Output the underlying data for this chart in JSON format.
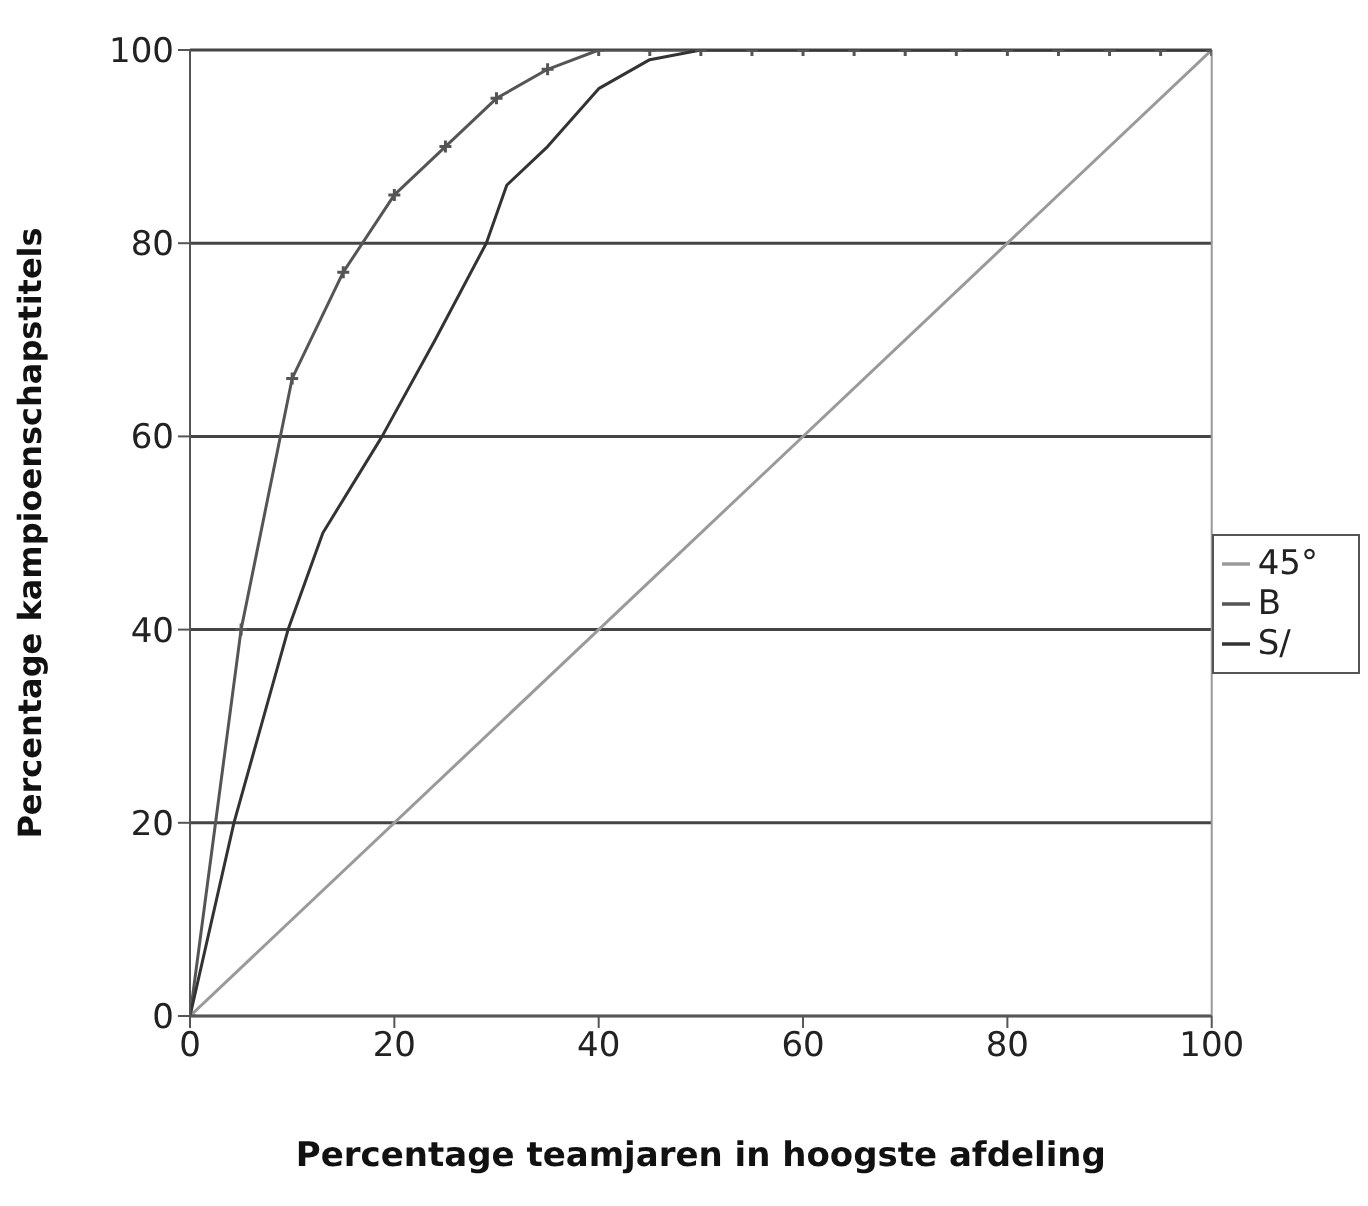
{
  "chart_data": {
    "type": "line",
    "xlabel": "Percentage teamjaren in hoogste afdeling",
    "ylabel": "Percentage kampioenschapstitels",
    "xlim": [
      0,
      100
    ],
    "xticks": [
      0,
      20,
      40,
      60,
      80,
      100
    ],
    "ylim": [
      0,
      100
    ],
    "yticks": [
      0,
      20,
      40,
      60,
      80,
      100
    ],
    "grid": "y",
    "legend": "right",
    "series": [
      {
        "name": "45°",
        "color": "#9a9a9a",
        "marker": "none",
        "x": [
          0,
          100
        ],
        "values": [
          0,
          100
        ]
      },
      {
        "name": "B",
        "color": "#555555",
        "marker": "cross",
        "x": [
          0,
          5,
          10,
          15,
          20,
          25,
          30,
          35,
          40,
          45,
          50,
          55,
          60,
          65,
          70,
          75,
          80,
          85,
          90,
          95,
          100
        ],
        "values": [
          0,
          40,
          66,
          77,
          85,
          90,
          95,
          98,
          100,
          100,
          100,
          100,
          100,
          100,
          100,
          100,
          100,
          100,
          100,
          100,
          100
        ]
      },
      {
        "name": "S/",
        "color": "#333333",
        "marker": "none",
        "x": [
          0,
          4.3,
          9.6,
          13,
          18.8,
          24,
          29,
          31,
          35,
          40,
          45,
          50,
          100
        ],
        "values": [
          0,
          20,
          40,
          50,
          60,
          70,
          80,
          86,
          90,
          96,
          99,
          100,
          100
        ]
      }
    ]
  }
}
